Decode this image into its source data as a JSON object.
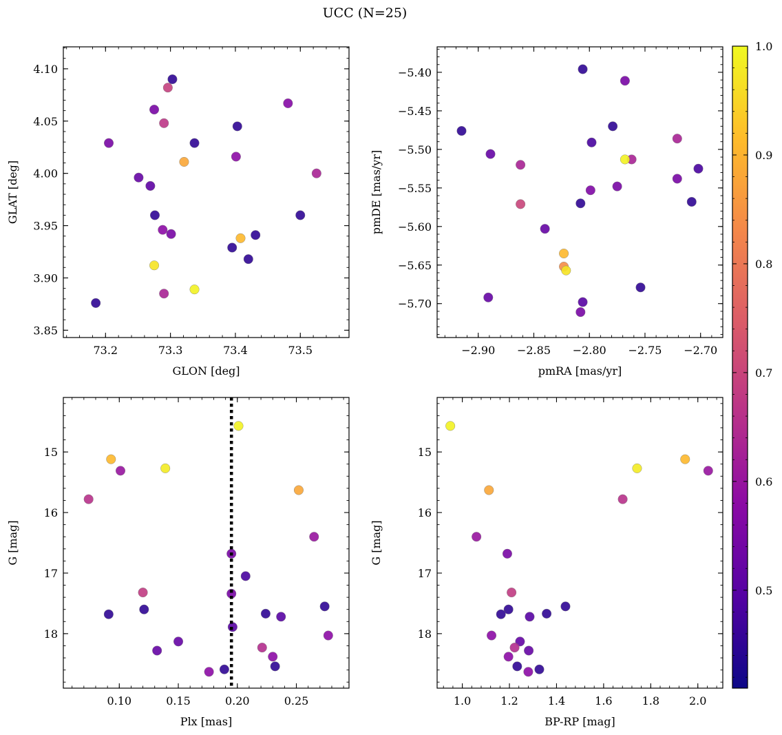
{
  "figure": {
    "title": "UCC (N=25)"
  },
  "colorbar": {
    "range": [
      0.41,
      1.0
    ],
    "ticks": [
      0.5,
      0.6,
      0.7,
      0.8,
      0.9,
      1.0
    ],
    "tick_labels": [
      "0.5",
      "0.6",
      "0.7",
      "0.8",
      "0.9",
      "1.0"
    ],
    "colormap": "plasma",
    "colors": [
      "#0d0887",
      "#5402a3",
      "#8b0aa5",
      "#b93289",
      "#db5c68",
      "#f48849",
      "#febc2a",
      "#f0f921"
    ]
  },
  "chart_data": [
    {
      "type": "scatter",
      "xlabel": "GLON [deg]",
      "ylabel": "GLAT [deg]",
      "xlim": [
        73.135,
        73.575
      ],
      "ylim": [
        3.843,
        4.121
      ],
      "xticks": [
        73.2,
        73.3,
        73.4,
        73.5
      ],
      "xtick_labels": [
        "73.2",
        "73.3",
        "73.4",
        "73.5"
      ],
      "yticks": [
        3.85,
        3.9,
        3.95,
        4.0,
        4.05,
        4.1
      ],
      "ytick_labels": [
        "3.85",
        "3.90",
        "3.95",
        "4.00",
        "4.05",
        "4.10"
      ],
      "points": [
        {
          "x": 73.303,
          "y": 4.09,
          "c": 0.45
        },
        {
          "x": 73.296,
          "y": 4.082,
          "c": 0.69
        },
        {
          "x": 73.481,
          "y": 4.067,
          "c": 0.57
        },
        {
          "x": 73.275,
          "y": 4.061,
          "c": 0.55
        },
        {
          "x": 73.29,
          "y": 4.048,
          "c": 0.67
        },
        {
          "x": 73.403,
          "y": 4.045,
          "c": 0.45
        },
        {
          "x": 73.205,
          "y": 4.029,
          "c": 0.55
        },
        {
          "x": 73.337,
          "y": 4.029,
          "c": 0.45
        },
        {
          "x": 73.401,
          "y": 4.016,
          "c": 0.58
        },
        {
          "x": 73.321,
          "y": 4.011,
          "c": 0.88
        },
        {
          "x": 73.525,
          "y": 4.0,
          "c": 0.63
        },
        {
          "x": 73.251,
          "y": 3.996,
          "c": 0.52
        },
        {
          "x": 73.269,
          "y": 3.988,
          "c": 0.51
        },
        {
          "x": 73.276,
          "y": 3.96,
          "c": 0.45
        },
        {
          "x": 73.5,
          "y": 3.96,
          "c": 0.45
        },
        {
          "x": 73.288,
          "y": 3.946,
          "c": 0.58
        },
        {
          "x": 73.301,
          "y": 3.942,
          "c": 0.55
        },
        {
          "x": 73.431,
          "y": 3.941,
          "c": 0.45
        },
        {
          "x": 73.408,
          "y": 3.938,
          "c": 0.91
        },
        {
          "x": 73.395,
          "y": 3.929,
          "c": 0.45
        },
        {
          "x": 73.42,
          "y": 3.918,
          "c": 0.45
        },
        {
          "x": 73.275,
          "y": 3.912,
          "c": 0.97
        },
        {
          "x": 73.337,
          "y": 3.889,
          "c": 0.99
        },
        {
          "x": 73.29,
          "y": 3.885,
          "c": 0.63
        },
        {
          "x": 73.185,
          "y": 3.876,
          "c": 0.45
        }
      ]
    },
    {
      "type": "scatter",
      "xlabel": "pmRA [mas/yr]",
      "ylabel": "pmDE [mas/yr]",
      "xlim": [
        -2.937,
        -2.68
      ],
      "ylim": [
        -5.744,
        -5.367
      ],
      "xticks": [
        -2.9,
        -2.85,
        -2.8,
        -2.75,
        -2.7
      ],
      "xtick_labels": [
        "−2.90",
        "−2.85",
        "−2.80",
        "−2.75",
        "−2.70"
      ],
      "yticks": [
        -5.4,
        -5.45,
        -5.5,
        -5.55,
        -5.6,
        -5.65,
        -5.7
      ],
      "ytick_labels": [
        "−5.40",
        "−5.45",
        "−5.50",
        "−5.55",
        "−5.60",
        "−5.65",
        "−5.70"
      ],
      "points": [
        {
          "x": -2.806,
          "y": -5.396,
          "c": 0.45
        },
        {
          "x": -2.768,
          "y": -5.411,
          "c": 0.55
        },
        {
          "x": -2.915,
          "y": -5.476,
          "c": 0.45
        },
        {
          "x": -2.779,
          "y": -5.47,
          "c": 0.45
        },
        {
          "x": -2.798,
          "y": -5.491,
          "c": 0.48
        },
        {
          "x": -2.721,
          "y": -5.486,
          "c": 0.63
        },
        {
          "x": -2.889,
          "y": -5.506,
          "c": 0.52
        },
        {
          "x": -2.762,
          "y": -5.513,
          "c": 0.63
        },
        {
          "x": -2.768,
          "y": -5.513,
          "c": 0.99
        },
        {
          "x": -2.862,
          "y": -5.52,
          "c": 0.63
        },
        {
          "x": -2.702,
          "y": -5.525,
          "c": 0.48
        },
        {
          "x": -2.721,
          "y": -5.538,
          "c": 0.55
        },
        {
          "x": -2.775,
          "y": -5.548,
          "c": 0.55
        },
        {
          "x": -2.799,
          "y": -5.553,
          "c": 0.56
        },
        {
          "x": -2.708,
          "y": -5.568,
          "c": 0.45
        },
        {
          "x": -2.808,
          "y": -5.57,
          "c": 0.45
        },
        {
          "x": -2.862,
          "y": -5.571,
          "c": 0.7
        },
        {
          "x": -2.84,
          "y": -5.603,
          "c": 0.52
        },
        {
          "x": -2.823,
          "y": -5.635,
          "c": 0.91
        },
        {
          "x": -2.823,
          "y": -5.652,
          "c": 0.84
        },
        {
          "x": -2.821,
          "y": -5.657,
          "c": 0.97
        },
        {
          "x": -2.754,
          "y": -5.679,
          "c": 0.45
        },
        {
          "x": -2.891,
          "y": -5.692,
          "c": 0.52
        },
        {
          "x": -2.806,
          "y": -5.698,
          "c": 0.5
        },
        {
          "x": -2.808,
          "y": -5.711,
          "c": 0.55
        }
      ]
    },
    {
      "type": "scatter",
      "xlabel": "Plx [mas]",
      "ylabel": "G [mag]",
      "xlim": [
        0.0526,
        0.2946
      ],
      "ylim": [
        18.9,
        14.1
      ],
      "invert_y": true,
      "xticks": [
        0.1,
        0.15,
        0.2,
        0.25
      ],
      "xtick_labels": [
        "0.10",
        "0.15",
        "0.20",
        "0.25"
      ],
      "yticks": [
        15,
        16,
        17,
        18
      ],
      "ytick_labels": [
        "15",
        "16",
        "17",
        "18"
      ],
      "vline": {
        "x": 0.195,
        "style": "dotted"
      },
      "points": [
        {
          "x": 0.201,
          "y": 14.57,
          "c": 0.99
        },
        {
          "x": 0.093,
          "y": 15.12,
          "c": 0.91
        },
        {
          "x": 0.139,
          "y": 15.27,
          "c": 0.98
        },
        {
          "x": 0.101,
          "y": 15.31,
          "c": 0.6
        },
        {
          "x": 0.252,
          "y": 15.63,
          "c": 0.88
        },
        {
          "x": 0.074,
          "y": 15.78,
          "c": 0.66
        },
        {
          "x": 0.265,
          "y": 16.4,
          "c": 0.6
        },
        {
          "x": 0.195,
          "y": 16.68,
          "c": 0.55
        },
        {
          "x": 0.207,
          "y": 17.05,
          "c": 0.48
        },
        {
          "x": 0.12,
          "y": 17.32,
          "c": 0.68
        },
        {
          "x": 0.195,
          "y": 17.34,
          "c": 0.55
        },
        {
          "x": 0.274,
          "y": 17.55,
          "c": 0.45
        },
        {
          "x": 0.121,
          "y": 17.6,
          "c": 0.45
        },
        {
          "x": 0.091,
          "y": 17.68,
          "c": 0.45
        },
        {
          "x": 0.224,
          "y": 17.67,
          "c": 0.45
        },
        {
          "x": 0.237,
          "y": 17.72,
          "c": 0.5
        },
        {
          "x": 0.196,
          "y": 17.89,
          "c": 0.5
        },
        {
          "x": 0.277,
          "y": 18.03,
          "c": 0.58
        },
        {
          "x": 0.15,
          "y": 18.13,
          "c": 0.52
        },
        {
          "x": 0.221,
          "y": 18.23,
          "c": 0.65
        },
        {
          "x": 0.132,
          "y": 18.28,
          "c": 0.52
        },
        {
          "x": 0.23,
          "y": 18.38,
          "c": 0.58
        },
        {
          "x": 0.232,
          "y": 18.54,
          "c": 0.45
        },
        {
          "x": 0.189,
          "y": 18.59,
          "c": 0.45
        },
        {
          "x": 0.176,
          "y": 18.63,
          "c": 0.58
        }
      ]
    },
    {
      "type": "scatter",
      "xlabel": "BP-RP [mag]",
      "ylabel": "G [mag]",
      "xlim": [
        0.893,
        2.106
      ],
      "ylim": [
        18.9,
        14.1
      ],
      "invert_y": true,
      "xticks": [
        1.0,
        1.2,
        1.4,
        1.6,
        1.8,
        2.0
      ],
      "xtick_labels": [
        "1.0",
        "1.2",
        "1.4",
        "1.6",
        "1.8",
        "2.0"
      ],
      "yticks": [
        15,
        16,
        17,
        18
      ],
      "ytick_labels": [
        "15",
        "16",
        "17",
        "18"
      ],
      "points": [
        {
          "x": 0.949,
          "y": 14.57,
          "c": 0.99
        },
        {
          "x": 1.946,
          "y": 15.12,
          "c": 0.91
        },
        {
          "x": 1.742,
          "y": 15.27,
          "c": 0.98
        },
        {
          "x": 2.044,
          "y": 15.31,
          "c": 0.6
        },
        {
          "x": 1.113,
          "y": 15.63,
          "c": 0.88
        },
        {
          "x": 1.681,
          "y": 15.78,
          "c": 0.66
        },
        {
          "x": 1.06,
          "y": 16.4,
          "c": 0.6
        },
        {
          "x": 1.191,
          "y": 16.68,
          "c": 0.55
        },
        {
          "x": 1.209,
          "y": 17.32,
          "c": 0.68
        },
        {
          "x": 1.438,
          "y": 17.55,
          "c": 0.45
        },
        {
          "x": 1.196,
          "y": 17.6,
          "c": 0.45
        },
        {
          "x": 1.164,
          "y": 17.68,
          "c": 0.45
        },
        {
          "x": 1.358,
          "y": 17.67,
          "c": 0.45
        },
        {
          "x": 1.286,
          "y": 17.72,
          "c": 0.5
        },
        {
          "x": 1.124,
          "y": 18.03,
          "c": 0.58
        },
        {
          "x": 1.245,
          "y": 18.13,
          "c": 0.52
        },
        {
          "x": 1.222,
          "y": 18.23,
          "c": 0.65
        },
        {
          "x": 1.282,
          "y": 18.28,
          "c": 0.52
        },
        {
          "x": 1.196,
          "y": 18.38,
          "c": 0.58
        },
        {
          "x": 1.233,
          "y": 18.54,
          "c": 0.45
        },
        {
          "x": 1.327,
          "y": 18.59,
          "c": 0.45
        },
        {
          "x": 1.28,
          "y": 18.63,
          "c": 0.58
        }
      ]
    }
  ]
}
